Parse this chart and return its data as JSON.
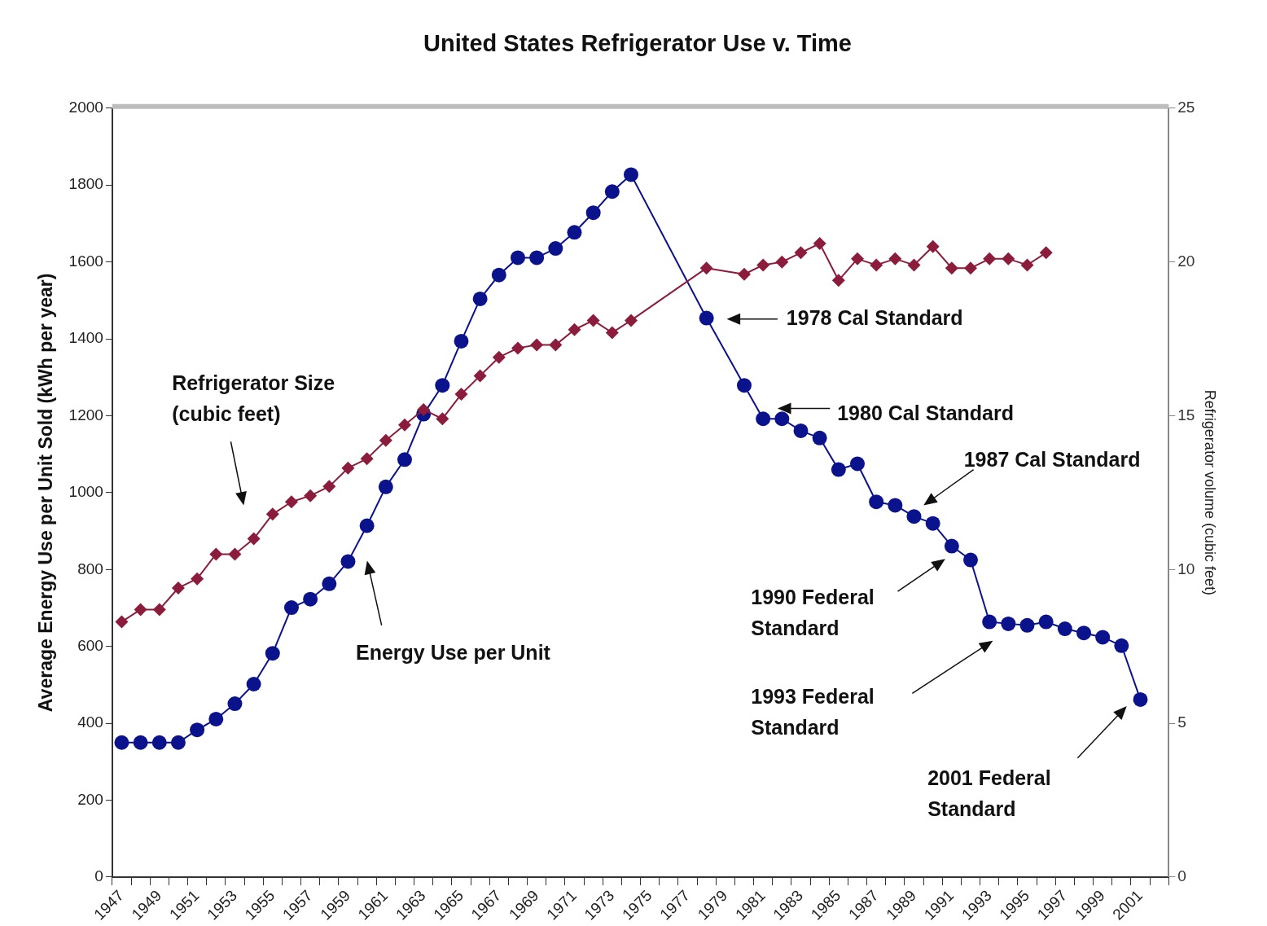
{
  "chart_data": {
    "type": "line",
    "title": "United States Refrigerator Use v. Time",
    "ylabel": "Average Energy Use per Unit Sold (kWh per year)",
    "y2label": "Refrigerator volume (cubic feet)",
    "categories": [
      "1947",
      null,
      "1949",
      null,
      "1951",
      null,
      "1953",
      null,
      "1955",
      null,
      "1957",
      null,
      "1959",
      null,
      "1961",
      null,
      "1963",
      null,
      "1965",
      null,
      "1967",
      null,
      "1969",
      null,
      "1971",
      null,
      "1973",
      null,
      "1975",
      null,
      "1977",
      null,
      "1979",
      null,
      "1981",
      null,
      "1983",
      null,
      "1985",
      null,
      "1987",
      null,
      "1989",
      null,
      "1991",
      null,
      "1993",
      null,
      "1995",
      null,
      "1997",
      null,
      "1999",
      null,
      "2001",
      null
    ],
    "series": [
      {
        "name": "Energy Use per Unit",
        "color": "#0a128c",
        "marker": "circle",
        "values": [
          350,
          350,
          350,
          350,
          383,
          411,
          451,
          502,
          582,
          701,
          723,
          763,
          821,
          914,
          1015,
          1086,
          1204,
          1279,
          1394,
          1504,
          1566,
          1611,
          1611,
          1635,
          1677,
          1728,
          1783,
          1827,
          null,
          null,
          null,
          1454,
          null,
          1279,
          1192,
          1192,
          1161,
          1142,
          1060,
          1075,
          976,
          967,
          938,
          920,
          861,
          825,
          664,
          659,
          655,
          664,
          646,
          635,
          624,
          602,
          462,
          null
        ]
      },
      {
        "name": "Refrigerator Size (cubic feet)",
        "color": "#8c1c3c",
        "marker": "diamond",
        "axis": "y2",
        "values": [
          8.3,
          8.7,
          8.7,
          9.4,
          9.7,
          10.5,
          10.5,
          11.0,
          11.8,
          12.2,
          12.4,
          12.7,
          13.3,
          13.6,
          14.2,
          14.7,
          15.2,
          14.9,
          15.7,
          16.3,
          16.9,
          17.2,
          17.3,
          17.3,
          17.8,
          18.1,
          17.7,
          18.1,
          null,
          null,
          null,
          19.8,
          null,
          19.6,
          19.9,
          20.0,
          20.3,
          20.6,
          19.4,
          20.1,
          19.9,
          20.1,
          19.9,
          20.5,
          19.8,
          19.8,
          20.1,
          20.1,
          19.9,
          20.3,
          null,
          null,
          null,
          null,
          null,
          null
        ]
      }
    ],
    "ylim": [
      0,
      2000
    ],
    "yticks": [
      0,
      200,
      400,
      600,
      800,
      1000,
      1200,
      1400,
      1600,
      1800,
      2000
    ],
    "y2lim": [
      0,
      25
    ],
    "y2ticks": [
      0,
      5,
      10,
      15,
      20,
      25
    ],
    "grid": false,
    "legend": false,
    "annotations": [
      "1978 Cal Standard",
      "1980 Cal Standard",
      "1987 Cal Standard",
      "1990 Federal Standard",
      "1993 Federal Standard",
      "2001 Federal Standard"
    ]
  }
}
